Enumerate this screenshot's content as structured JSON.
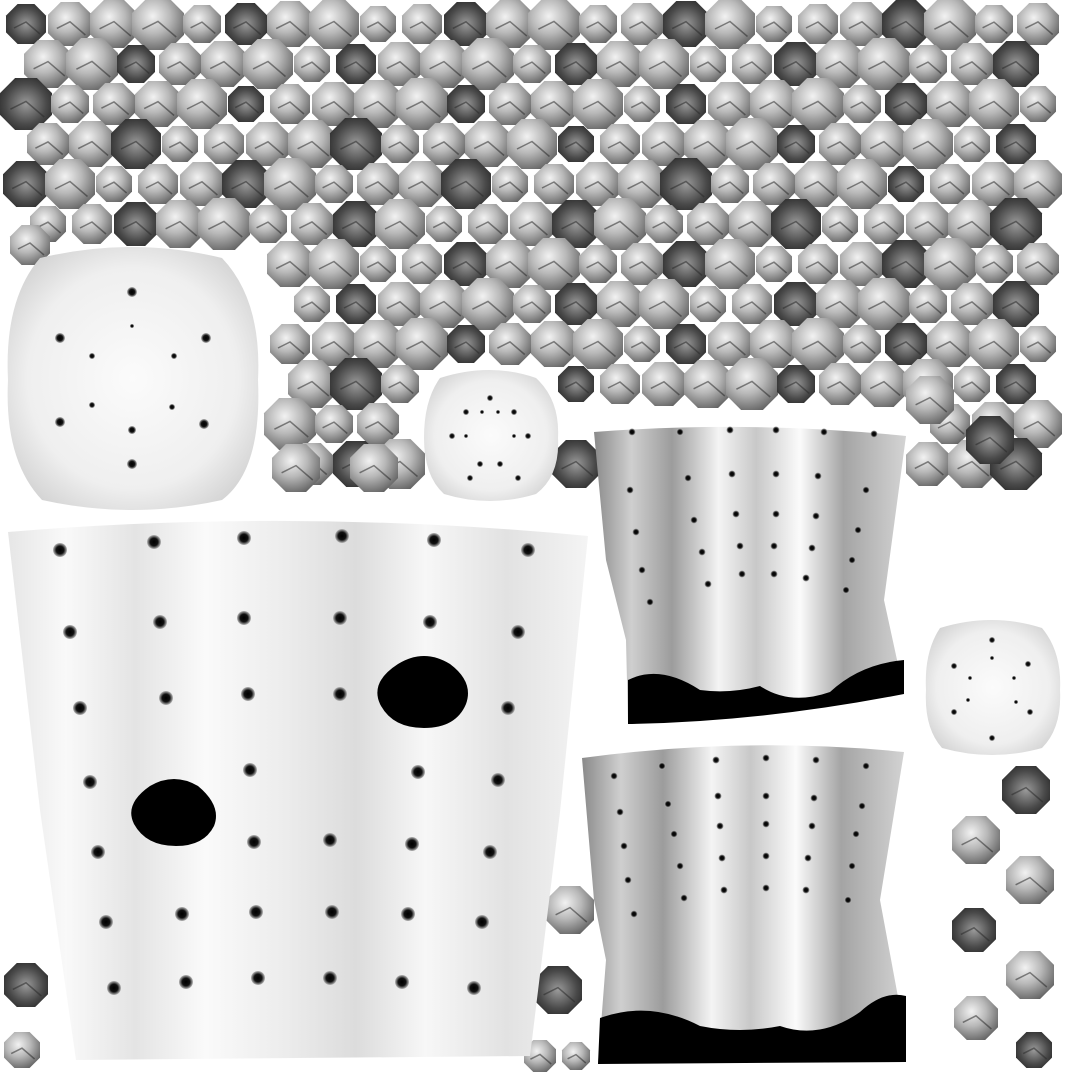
{
  "image": {
    "kind": "ambient-occlusion texture atlas",
    "background_color": "#ffffff",
    "colors": {
      "panel_light": "#f7f7f7",
      "panel_mid": "#d6d6d6",
      "panel_dark": "#9a9a9a",
      "hole_fill": "#000000",
      "chip_dark": "#3a3a3a",
      "chip_light": "#eeeeee"
    },
    "charts_or_text": "none"
  }
}
